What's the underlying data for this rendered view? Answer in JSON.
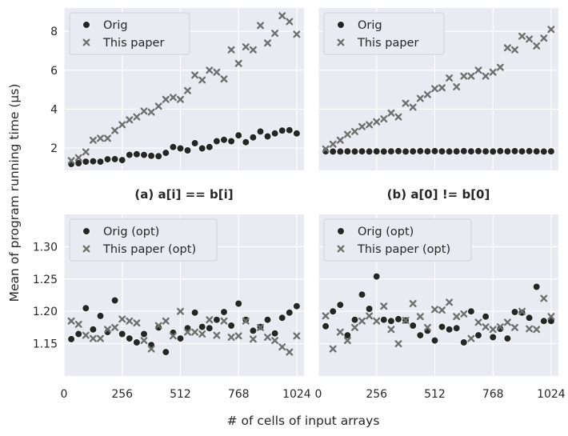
{
  "figure": {
    "ylabel": "Mean of program running time (µs)",
    "xlabel": "# of cells of input arrays",
    "x_tick_labels": [
      "0",
      "256",
      "512",
      "768",
      "1024"
    ],
    "captions": [
      "(a) a[i] == b[i]",
      "(b) a[0] != b[0]"
    ],
    "colors": {
      "orig": "#262626",
      "paper": "#6e6e6e",
      "panel_bg": "#eaeaf2",
      "grid": "#ffffff"
    },
    "markers": {
      "orig": "filled circle",
      "paper": "x cross"
    }
  },
  "chart_data": [
    {
      "type": "scatter",
      "panel": "a",
      "caption": "(a) a[i] == b[i]",
      "xlabel": "# of cells of input arrays",
      "ylabel": "Mean of program running time (µs)",
      "xlim": [
        0,
        1056
      ],
      "ylim": [
        0.85,
        9.2
      ],
      "y_ticks": [
        2,
        4,
        6,
        8
      ],
      "y_tick_labels": [
        "2",
        "4",
        "6",
        "8"
      ],
      "grid": true,
      "legend": "top-left",
      "series": [
        {
          "name": "Orig",
          "x": [
            32,
            64,
            96,
            128,
            160,
            192,
            224,
            256,
            288,
            320,
            352,
            384,
            416,
            448,
            480,
            512,
            544,
            576,
            608,
            640,
            672,
            704,
            736,
            768,
            800,
            832,
            864,
            896,
            928,
            960,
            992,
            1024
          ],
          "y": [
            1.18,
            1.22,
            1.3,
            1.32,
            1.3,
            1.42,
            1.43,
            1.38,
            1.65,
            1.68,
            1.65,
            1.6,
            1.58,
            1.75,
            2.05,
            1.98,
            1.88,
            2.25,
            1.98,
            2.05,
            2.35,
            2.42,
            2.35,
            2.65,
            2.3,
            2.55,
            2.85,
            2.6,
            2.75,
            2.9,
            2.92,
            2.75
          ]
        },
        {
          "name": "This paper",
          "x": [
            32,
            64,
            96,
            128,
            160,
            192,
            224,
            256,
            288,
            320,
            352,
            384,
            416,
            448,
            480,
            512,
            544,
            576,
            608,
            640,
            672,
            704,
            736,
            768,
            800,
            832,
            864,
            896,
            928,
            960,
            992,
            1024
          ],
          "y": [
            1.35,
            1.5,
            1.8,
            2.4,
            2.5,
            2.5,
            2.9,
            3.2,
            3.45,
            3.6,
            3.9,
            3.85,
            4.15,
            4.5,
            4.6,
            4.5,
            4.95,
            5.75,
            5.5,
            6.0,
            5.9,
            5.55,
            7.05,
            6.35,
            7.2,
            7.05,
            8.3,
            7.4,
            7.9,
            8.8,
            8.5,
            7.85
          ]
        }
      ]
    },
    {
      "type": "scatter",
      "panel": "b",
      "caption": "(b) a[0] != b[0]",
      "xlabel": "# of cells of input arrays",
      "ylabel": "Mean of program running time (µs)",
      "xlim": [
        0,
        1056
      ],
      "ylim": [
        0.85,
        9.2
      ],
      "y_ticks": [
        2,
        4,
        6,
        8
      ],
      "y_tick_labels": [
        "2",
        "4",
        "6",
        "8"
      ],
      "grid": true,
      "legend": "top-left",
      "series": [
        {
          "name": "Orig",
          "x": [
            32,
            64,
            96,
            128,
            160,
            192,
            224,
            256,
            288,
            320,
            352,
            384,
            416,
            448,
            480,
            512,
            544,
            576,
            608,
            640,
            672,
            704,
            736,
            768,
            800,
            832,
            864,
            896,
            928,
            960,
            992,
            1024
          ],
          "y": [
            1.83,
            1.82,
            1.82,
            1.83,
            1.82,
            1.83,
            1.82,
            1.83,
            1.82,
            1.83,
            1.84,
            1.82,
            1.83,
            1.84,
            1.83,
            1.84,
            1.83,
            1.82,
            1.83,
            1.84,
            1.83,
            1.84,
            1.83,
            1.82,
            1.84,
            1.83,
            1.84,
            1.83,
            1.84,
            1.83,
            1.82,
            1.83
          ]
        },
        {
          "name": "This paper",
          "x": [
            32,
            64,
            96,
            128,
            160,
            192,
            224,
            256,
            288,
            320,
            352,
            384,
            416,
            448,
            480,
            512,
            544,
            576,
            608,
            640,
            672,
            704,
            736,
            768,
            800,
            832,
            864,
            896,
            928,
            960,
            992,
            1024
          ],
          "y": [
            1.95,
            2.2,
            2.4,
            2.7,
            2.85,
            3.1,
            3.2,
            3.35,
            3.5,
            3.8,
            3.6,
            4.3,
            4.1,
            4.55,
            4.75,
            5.05,
            5.1,
            5.6,
            5.15,
            5.7,
            5.7,
            6.0,
            5.7,
            5.9,
            6.15,
            7.15,
            7.05,
            7.75,
            7.6,
            7.25,
            7.65,
            8.1
          ]
        }
      ]
    },
    {
      "type": "scatter",
      "panel": "c",
      "xlabel": "# of cells of input arrays",
      "ylabel": "Mean of program running time (µs)",
      "xlim": [
        0,
        1056
      ],
      "ylim": [
        1.1,
        1.35
      ],
      "y_ticks": [
        1.15,
        1.2,
        1.25,
        1.3
      ],
      "y_tick_labels": [
        "1.15",
        "1.20",
        "1.25",
        "1.30"
      ],
      "x_ticks": [
        0,
        256,
        512,
        768,
        1024
      ],
      "x_tick_labels": [
        "0",
        "256",
        "512",
        "768",
        "1024"
      ],
      "grid": true,
      "legend": "top-left",
      "series": [
        {
          "name": "Orig (opt)",
          "x": [
            32,
            64,
            96,
            128,
            160,
            192,
            224,
            256,
            288,
            320,
            352,
            384,
            416,
            448,
            480,
            512,
            544,
            576,
            608,
            640,
            672,
            704,
            736,
            768,
            800,
            832,
            864,
            896,
            928,
            960,
            992,
            1024
          ],
          "y": [
            1.157,
            1.165,
            1.205,
            1.172,
            1.193,
            1.168,
            1.217,
            1.165,
            1.158,
            1.152,
            1.165,
            1.148,
            1.175,
            1.137,
            1.167,
            1.158,
            1.174,
            1.198,
            1.176,
            1.174,
            1.187,
            1.199,
            1.178,
            1.212,
            1.187,
            1.17,
            1.176,
            1.187,
            1.166,
            1.19,
            1.198,
            1.208
          ]
        },
        {
          "name": "This paper (opt)",
          "x": [
            32,
            64,
            96,
            128,
            160,
            192,
            224,
            256,
            288,
            320,
            352,
            384,
            416,
            448,
            480,
            512,
            544,
            576,
            608,
            640,
            672,
            704,
            736,
            768,
            800,
            832,
            864,
            896,
            928,
            960,
            992,
            1024
          ],
          "y": [
            1.185,
            1.18,
            1.163,
            1.158,
            1.158,
            1.172,
            1.175,
            1.188,
            1.185,
            1.182,
            1.155,
            1.142,
            1.178,
            1.185,
            1.162,
            1.2,
            1.168,
            1.168,
            1.165,
            1.187,
            1.163,
            1.185,
            1.16,
            1.162,
            1.185,
            1.157,
            1.175,
            1.16,
            1.155,
            1.145,
            1.137,
            1.162
          ]
        }
      ]
    },
    {
      "type": "scatter",
      "panel": "d",
      "xlabel": "# of cells of input arrays",
      "ylabel": "Mean of program running time (µs)",
      "xlim": [
        0,
        1056
      ],
      "ylim": [
        1.1,
        1.35
      ],
      "y_ticks": [
        1.15,
        1.2,
        1.25,
        1.3
      ],
      "y_tick_labels": [
        "1.15",
        "1.20",
        "1.25",
        "1.30"
      ],
      "x_ticks": [
        0,
        256,
        512,
        768,
        1024
      ],
      "x_tick_labels": [
        "0",
        "256",
        "512",
        "768",
        "1024"
      ],
      "grid": true,
      "legend": "top-left",
      "series": [
        {
          "name": "Orig (opt)",
          "x": [
            32,
            64,
            96,
            128,
            160,
            192,
            224,
            256,
            288,
            320,
            352,
            384,
            416,
            448,
            480,
            512,
            544,
            576,
            608,
            640,
            672,
            704,
            736,
            768,
            800,
            832,
            864,
            896,
            928,
            960,
            992,
            1024
          ],
          "y": [
            1.177,
            1.2,
            1.21,
            1.163,
            1.187,
            1.226,
            1.204,
            1.254,
            1.187,
            1.185,
            1.188,
            1.186,
            1.178,
            1.163,
            1.17,
            1.155,
            1.176,
            1.172,
            1.174,
            1.152,
            1.2,
            1.163,
            1.192,
            1.16,
            1.173,
            1.158,
            1.199,
            1.198,
            1.19,
            1.238,
            1.185,
            1.185
          ]
        },
        {
          "name": "This paper (opt)",
          "x": [
            32,
            64,
            96,
            128,
            160,
            192,
            224,
            256,
            288,
            320,
            352,
            384,
            416,
            448,
            480,
            512,
            544,
            576,
            608,
            640,
            672,
            704,
            736,
            768,
            800,
            832,
            864,
            896,
            928,
            960,
            992,
            1024
          ],
          "y": [
            1.193,
            1.142,
            1.168,
            1.155,
            1.175,
            1.185,
            1.193,
            1.185,
            1.208,
            1.172,
            1.15,
            1.186,
            1.212,
            1.192,
            1.175,
            1.203,
            1.202,
            1.214,
            1.192,
            1.196,
            1.158,
            1.183,
            1.176,
            1.172,
            1.176,
            1.183,
            1.175,
            1.2,
            1.173,
            1.172,
            1.22,
            1.192
          ]
        }
      ]
    }
  ]
}
